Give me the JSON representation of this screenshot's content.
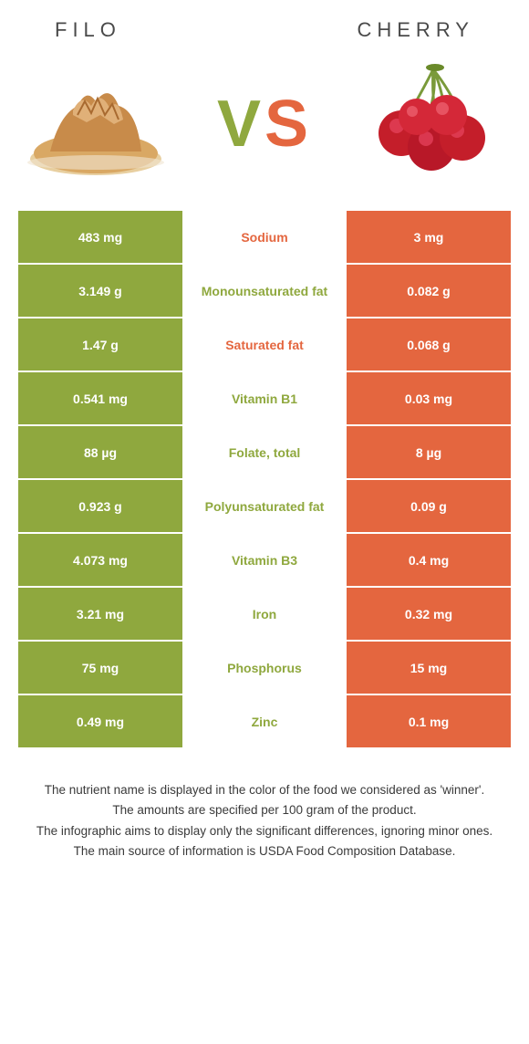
{
  "header": {
    "left_title": "Filo",
    "right_title": "Cherry"
  },
  "vs": {
    "v": "V",
    "s": "S"
  },
  "colors": {
    "left": "#8fa83e",
    "right": "#e4663f",
    "text": "#3a3a3a",
    "bg": "#ffffff"
  },
  "rows": [
    {
      "left": "483 mg",
      "label": "Sodium",
      "right": "3 mg",
      "winner": "right"
    },
    {
      "left": "3.149 g",
      "label": "Monounsaturated fat",
      "right": "0.082 g",
      "winner": "left"
    },
    {
      "left": "1.47 g",
      "label": "Saturated fat",
      "right": "0.068 g",
      "winner": "right"
    },
    {
      "left": "0.541 mg",
      "label": "Vitamin B1",
      "right": "0.03 mg",
      "winner": "left"
    },
    {
      "left": "88 µg",
      "label": "Folate, total",
      "right": "8 µg",
      "winner": "left"
    },
    {
      "left": "0.923 g",
      "label": "Polyunsaturated fat",
      "right": "0.09 g",
      "winner": "left"
    },
    {
      "left": "4.073 mg",
      "label": "Vitamin B3",
      "right": "0.4 mg",
      "winner": "left"
    },
    {
      "left": "3.21 mg",
      "label": "Iron",
      "right": "0.32 mg",
      "winner": "left"
    },
    {
      "left": "75 mg",
      "label": "Phosphorus",
      "right": "15 mg",
      "winner": "left"
    },
    {
      "left": "0.49 mg",
      "label": "Zinc",
      "right": "0.1 mg",
      "winner": "left"
    }
  ],
  "footer": {
    "line1": "The nutrient name is displayed in the color of the food we considered as 'winner'.",
    "line2": "The amounts are specified per 100 gram of the product.",
    "line3": "The infographic aims to display only the significant differences, ignoring minor ones.",
    "line4": "The main source of information is USDA Food Composition Database."
  },
  "images": {
    "left_alt": "filo-pastry",
    "right_alt": "cherries"
  }
}
